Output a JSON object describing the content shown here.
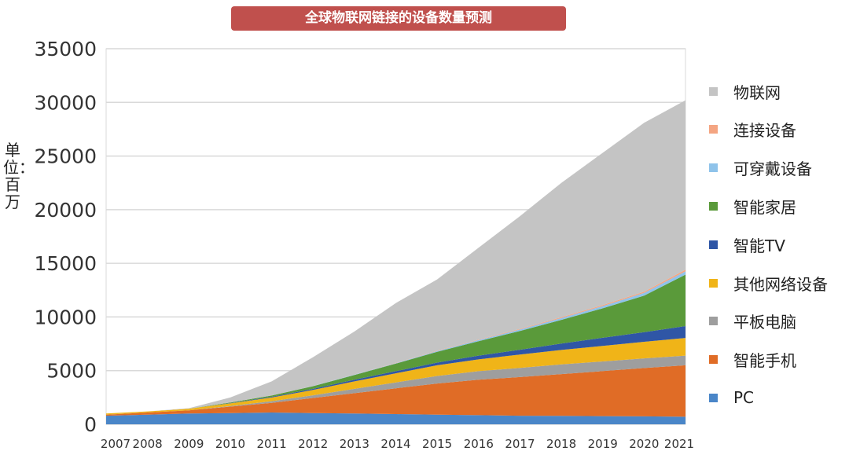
{
  "chart_data": {
    "type": "area",
    "title": "全球物联网链接的设备数量预测",
    "ylabel": "单位：百万",
    "xlabel": "",
    "ylim": [
      0,
      35000
    ],
    "yticks": [
      0,
      5000,
      10000,
      15000,
      20000,
      25000,
      30000,
      35000
    ],
    "grid": true,
    "legend_position": "right",
    "stacked": true,
    "categories": [
      "2007",
      "2008",
      "2009",
      "2010",
      "2011",
      "2012",
      "2013",
      "2014",
      "2015",
      "2016",
      "2017",
      "2018",
      "2019",
      "2020",
      "2021"
    ],
    "series": [
      {
        "name": "PC",
        "color": "#4a86c8",
        "values": [
          800,
          900,
          1000,
          1050,
          1100,
          1050,
          1000,
          950,
          900,
          850,
          800,
          780,
          760,
          740,
          700
        ]
      },
      {
        "name": "智能手机",
        "color": "#e06c26",
        "values": [
          100,
          200,
          300,
          600,
          900,
          1400,
          1900,
          2400,
          2900,
          3300,
          3600,
          3900,
          4200,
          4500,
          4800
        ]
      },
      {
        "name": "平板电脑",
        "color": "#9e9e9e",
        "values": [
          0,
          0,
          0,
          50,
          150,
          250,
          400,
          550,
          700,
          800,
          850,
          900,
          900,
          900,
          900
        ]
      },
      {
        "name": "其他网络设备",
        "color": "#f0b418",
        "values": [
          100,
          100,
          150,
          250,
          350,
          500,
          700,
          850,
          1000,
          1100,
          1250,
          1350,
          1450,
          1550,
          1650
        ]
      },
      {
        "name": "智能TV",
        "color": "#2f56a6",
        "values": [
          0,
          0,
          0,
          30,
          60,
          100,
          150,
          200,
          250,
          350,
          450,
          600,
          750,
          900,
          1100
        ]
      },
      {
        "name": "智能家居",
        "color": "#5a9a3a",
        "values": [
          0,
          0,
          0,
          50,
          120,
          250,
          450,
          700,
          1000,
          1350,
          1750,
          2200,
          2750,
          3400,
          4800
        ]
      },
      {
        "name": "可穿戴设备",
        "color": "#8fc3ea",
        "values": [
          0,
          0,
          0,
          0,
          0,
          20,
          30,
          50,
          80,
          100,
          130,
          160,
          200,
          250,
          300
        ]
      },
      {
        "name": "连接设备",
        "color": "#f4a582",
        "values": [
          0,
          0,
          0,
          0,
          0,
          0,
          10,
          20,
          30,
          40,
          60,
          80,
          100,
          120,
          150
        ]
      },
      {
        "name": "物联网",
        "color": "#c4c4c4",
        "values": [
          0,
          0,
          50,
          470,
          1320,
          2680,
          4010,
          5580,
          6640,
          8560,
          10510,
          12530,
          14190,
          15740,
          15800
        ]
      }
    ]
  }
}
